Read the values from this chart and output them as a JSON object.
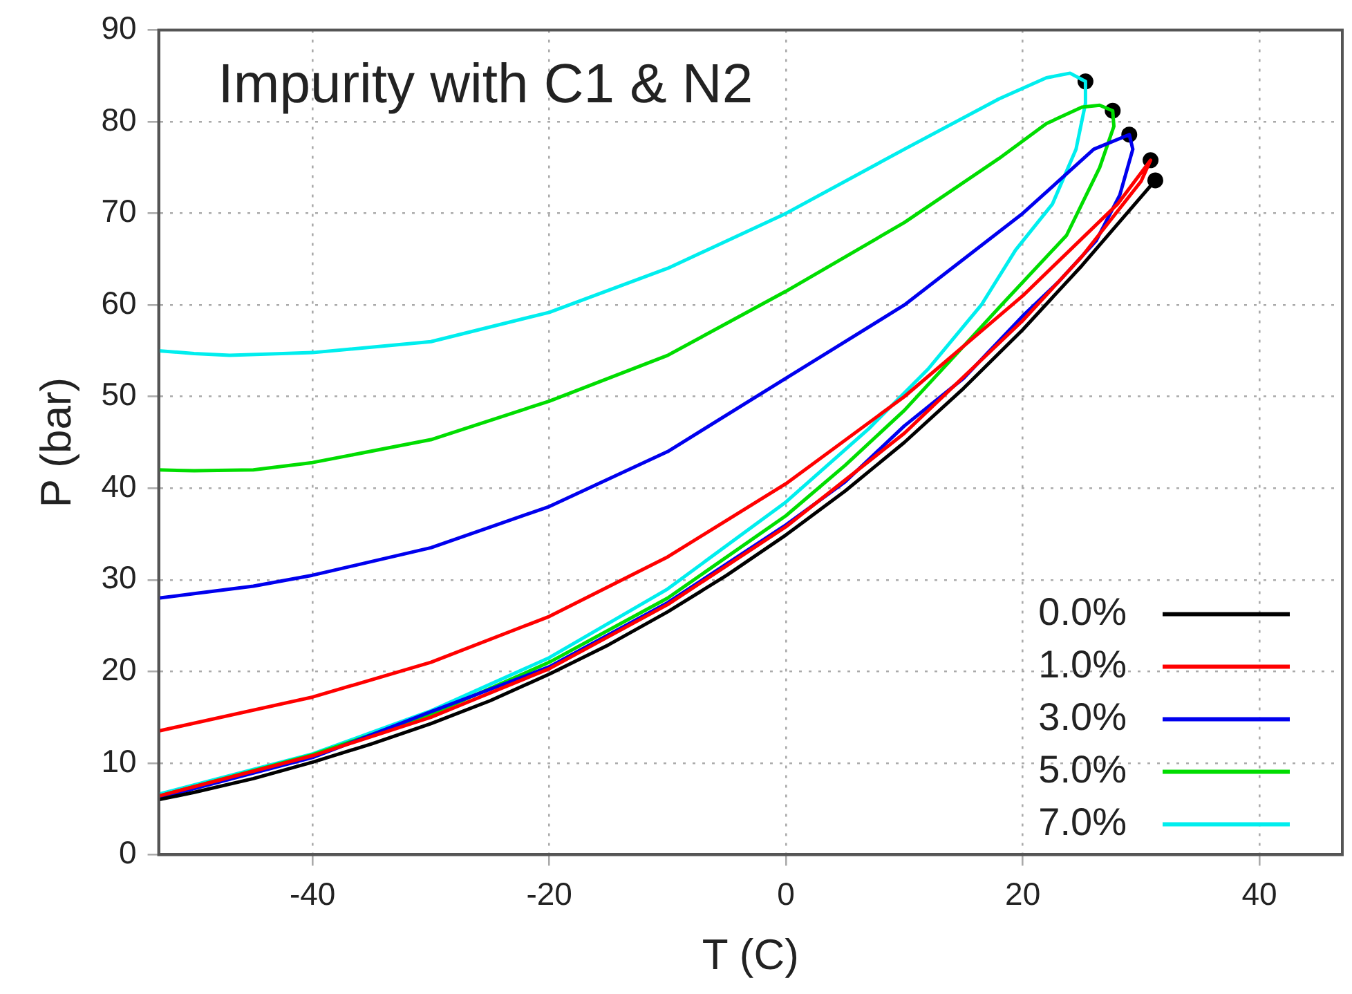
{
  "chart_data": {
    "type": "line",
    "title": "Impurity with C1 & N2",
    "xlabel": "T (C)",
    "ylabel": "P (bar)",
    "xlim": [
      -53,
      47
    ],
    "ylim": [
      0,
      90
    ],
    "xticks": [
      -40,
      -20,
      0,
      20,
      40
    ],
    "yticks": [
      0,
      10,
      20,
      30,
      40,
      50,
      60,
      70,
      80,
      90
    ],
    "grid": true,
    "legend": "bottom right",
    "line_style": "solid",
    "series": [
      {
        "name": "0.0%",
        "color": "#000000",
        "x": [
          -53,
          -50,
          -45,
          -40,
          -35,
          -30,
          -25,
          -20,
          -15,
          -10,
          -5,
          0,
          5,
          10,
          15,
          20,
          25,
          31.2
        ],
        "values": [
          6.0,
          6.8,
          8.3,
          10.1,
          12.1,
          14.3,
          16.8,
          19.7,
          22.9,
          26.5,
          30.5,
          34.9,
          39.7,
          45.0,
          50.9,
          57.3,
          64.3,
          73.6
        ]
      },
      {
        "name": "1.0%",
        "color": "#ff0000",
        "x": [
          -53,
          -40,
          -30,
          -20,
          -10,
          0,
          10,
          20,
          28,
          30.8,
          30,
          25,
          20,
          10,
          0,
          -10,
          -20,
          -30,
          -40,
          -53
        ],
        "values": [
          13.5,
          17.2,
          21,
          26,
          32.5,
          40.5,
          50,
          61,
          71,
          75.8,
          73.5,
          65.3,
          58.3,
          46,
          35.8,
          27.3,
          20.3,
          15,
          10.8,
          6.4
        ]
      },
      {
        "name": "3.0%",
        "color": "#0000ee",
        "x": [
          -53,
          -50,
          -45,
          -40,
          -30,
          -20,
          -10,
          0,
          10,
          20,
          26,
          29,
          29.3,
          28.2,
          26.2,
          23,
          20,
          15,
          10,
          5,
          0,
          -10,
          -20,
          -30,
          -40,
          -53
        ],
        "values": [
          28,
          28.5,
          29.3,
          30.5,
          33.5,
          38,
          44,
          52,
          60,
          70,
          77,
          78.6,
          77,
          72,
          67,
          62.5,
          58.8,
          52,
          46.8,
          40.7,
          36,
          27.5,
          20.5,
          15.6,
          10.6,
          6.2
        ]
      },
      {
        "name": "5.0%",
        "color": "#00dd00",
        "x": [
          -53,
          -50,
          -45,
          -40,
          -30,
          -20,
          -10,
          0,
          10,
          18,
          22,
          25,
          26.5,
          27.6,
          27.7,
          26.5,
          23.7,
          18.2,
          15,
          10,
          5,
          0,
          -10,
          -20,
          -30,
          -40,
          -53
        ],
        "values": [
          42,
          41.9,
          42,
          42.8,
          45.3,
          49.5,
          54.5,
          61.5,
          69,
          76,
          79.8,
          81.6,
          81.8,
          81.2,
          79.5,
          75,
          67.6,
          60,
          55.5,
          48.5,
          42.5,
          37,
          28,
          21,
          15.3,
          10.9,
          6.4
        ]
      },
      {
        "name": "7.0%",
        "color": "#00eeee",
        "x": [
          -53,
          -50,
          -47,
          -40,
          -30,
          -20,
          -10,
          0,
          10,
          18,
          22,
          24,
          25.3,
          25.3,
          24.5,
          22.5,
          19.4,
          16.5,
          12,
          7,
          0,
          -10,
          -20,
          -30,
          -40,
          -53
        ],
        "values": [
          55,
          54.7,
          54.5,
          54.8,
          56,
          59.2,
          64,
          70,
          77,
          82.5,
          84.8,
          85.3,
          84.4,
          82,
          77,
          71,
          66,
          60,
          53,
          46.5,
          38.5,
          29,
          21.5,
          15.7,
          11,
          6.6
        ]
      },
      {
        "type": "scatter",
        "marker": "circle",
        "color": "#000000",
        "x": [
          31.2,
          30.8,
          29,
          27.6,
          25.3
        ],
        "values": [
          73.6,
          75.8,
          78.6,
          81.2,
          84.4
        ]
      }
    ]
  }
}
